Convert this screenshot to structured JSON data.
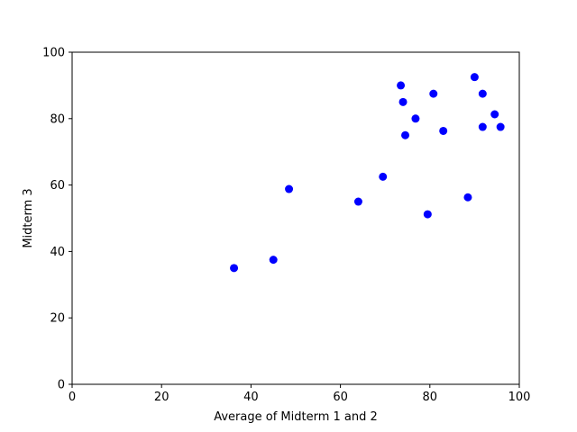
{
  "chart_data": {
    "type": "scatter",
    "title": "",
    "xlabel": "Average of Midterm 1 and 2",
    "ylabel": "Midterm 3",
    "xlim": [
      0,
      100
    ],
    "ylim": [
      0,
      100
    ],
    "xticks": [
      0,
      20,
      40,
      60,
      80,
      100
    ],
    "yticks": [
      0,
      20,
      40,
      60,
      80,
      100
    ],
    "grid": false,
    "legend": "none",
    "marker_color": "#0000ff",
    "series": [
      {
        "points": [
          {
            "x": 36.2,
            "y": 35.0
          },
          {
            "x": 45.0,
            "y": 37.5
          },
          {
            "x": 48.5,
            "y": 58.8
          },
          {
            "x": 64.0,
            "y": 55.0
          },
          {
            "x": 69.5,
            "y": 62.5
          },
          {
            "x": 73.5,
            "y": 90.0
          },
          {
            "x": 74.0,
            "y": 85.0
          },
          {
            "x": 74.5,
            "y": 75.0
          },
          {
            "x": 76.8,
            "y": 80.0
          },
          {
            "x": 79.5,
            "y": 51.2
          },
          {
            "x": 80.8,
            "y": 87.5
          },
          {
            "x": 83.0,
            "y": 76.3
          },
          {
            "x": 88.5,
            "y": 56.3
          },
          {
            "x": 90.0,
            "y": 92.5
          },
          {
            "x": 91.8,
            "y": 87.5
          },
          {
            "x": 91.8,
            "y": 77.5
          },
          {
            "x": 94.5,
            "y": 81.3
          },
          {
            "x": 95.8,
            "y": 77.5
          }
        ]
      }
    ]
  }
}
